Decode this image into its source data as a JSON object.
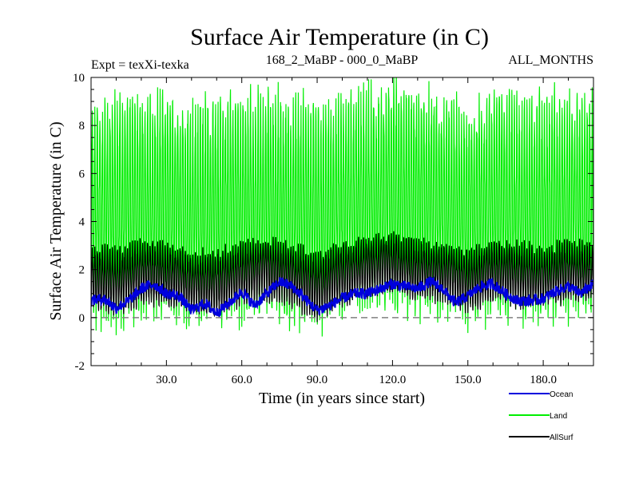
{
  "chart_data": {
    "type": "line",
    "title": "Surface Air Temperature (in C)",
    "subtitle_left": "Expt = texXi-texka",
    "subtitle_center": "168_2_MaBP - 000_0_MaBP",
    "subtitle_right": "ALL_MONTHS",
    "xlabel": "Time (in years since start)",
    "ylabel": "Surface Air Temperature (in C)",
    "xlim": [
      0,
      200
    ],
    "ylim": [
      -2,
      10
    ],
    "x_ticks": [
      30,
      60,
      90,
      120,
      150,
      180
    ],
    "x_tick_labels": [
      "30.0",
      "60.0",
      "90.0",
      "120.0",
      "150.0",
      "180.0"
    ],
    "y_ticks": [
      -2,
      0,
      2,
      4,
      6,
      8,
      10
    ],
    "y_tick_labels": [
      "-2",
      "0",
      "2",
      "4",
      "6",
      "8",
      "10"
    ],
    "reference_line": {
      "y": 0,
      "style": "dashed",
      "color": "#808080"
    },
    "series": [
      {
        "name": "Land",
        "color": "#00ee00",
        "summary": "monthly values; seasonal cycle roughly between 0 and 9 C, min about -0.9, max about 9.6",
        "x": [
          0,
          10,
          20,
          30,
          40,
          50,
          60,
          70,
          80,
          90,
          100,
          110,
          120,
          130,
          140,
          150,
          160,
          170,
          180,
          190,
          200
        ],
        "upper": [
          8.3,
          8.6,
          8.9,
          8.8,
          8.4,
          8.6,
          8.8,
          8.9,
          8.7,
          8.5,
          8.8,
          9.0,
          9.2,
          8.9,
          8.8,
          8.6,
          8.9,
          8.8,
          8.7,
          8.9,
          8.6
        ],
        "lower": [
          0.4,
          0.2,
          0.5,
          0.4,
          0.3,
          0.1,
          0.5,
          0.6,
          0.4,
          0.1,
          0.5,
          0.7,
          0.9,
          0.7,
          0.6,
          0.2,
          0.6,
          0.5,
          0.4,
          0.6,
          0.6
        ]
      },
      {
        "name": "AllSurf",
        "color": "#000000",
        "summary": "monthly values; seasonal cycle roughly between 0 and 3.5 C",
        "x": [
          0,
          10,
          20,
          30,
          40,
          50,
          60,
          70,
          80,
          90,
          100,
          110,
          120,
          130,
          140,
          150,
          160,
          170,
          180,
          190,
          200
        ],
        "upper": [
          2.9,
          2.7,
          3.1,
          3.0,
          2.6,
          2.7,
          3.0,
          3.2,
          2.9,
          2.6,
          3.0,
          3.2,
          3.4,
          3.1,
          3.0,
          2.7,
          3.1,
          3.0,
          2.9,
          3.1,
          3.0
        ],
        "lower": [
          0.5,
          0.3,
          0.7,
          0.6,
          0.3,
          0.2,
          0.7,
          0.9,
          0.6,
          0.1,
          0.7,
          1.0,
          1.2,
          0.9,
          0.8,
          0.4,
          0.8,
          0.6,
          0.6,
          0.8,
          0.9
        ]
      },
      {
        "name": "Ocean",
        "color": "#0000dd",
        "summary": "smoothed multi-decadal variability between about 0 and 1.8 C",
        "x": [
          0,
          5,
          10,
          15,
          20,
          25,
          30,
          35,
          40,
          45,
          50,
          55,
          60,
          65,
          70,
          75,
          80,
          85,
          90,
          95,
          100,
          105,
          110,
          115,
          120,
          125,
          130,
          135,
          140,
          145,
          150,
          155,
          160,
          165,
          170,
          175,
          180,
          185,
          190,
          195,
          200
        ],
        "values": [
          0.7,
          0.8,
          0.4,
          0.7,
          1.2,
          1.4,
          1.0,
          0.9,
          0.3,
          0.6,
          0.2,
          0.6,
          1.1,
          0.5,
          1.0,
          1.5,
          1.3,
          0.8,
          0.3,
          0.5,
          0.8,
          1.0,
          1.0,
          1.2,
          1.4,
          1.3,
          1.2,
          1.5,
          1.2,
          0.6,
          0.9,
          1.3,
          1.4,
          1.0,
          0.7,
          0.7,
          0.8,
          1.1,
          1.3,
          1.0,
          1.4
        ]
      }
    ],
    "legend": {
      "placement": "bottom-right",
      "entries": [
        {
          "label": "Ocean",
          "color": "#0000dd"
        },
        {
          "label": "Land",
          "color": "#00ee00"
        },
        {
          "label": "AllSurf",
          "color": "#000000"
        }
      ]
    }
  }
}
